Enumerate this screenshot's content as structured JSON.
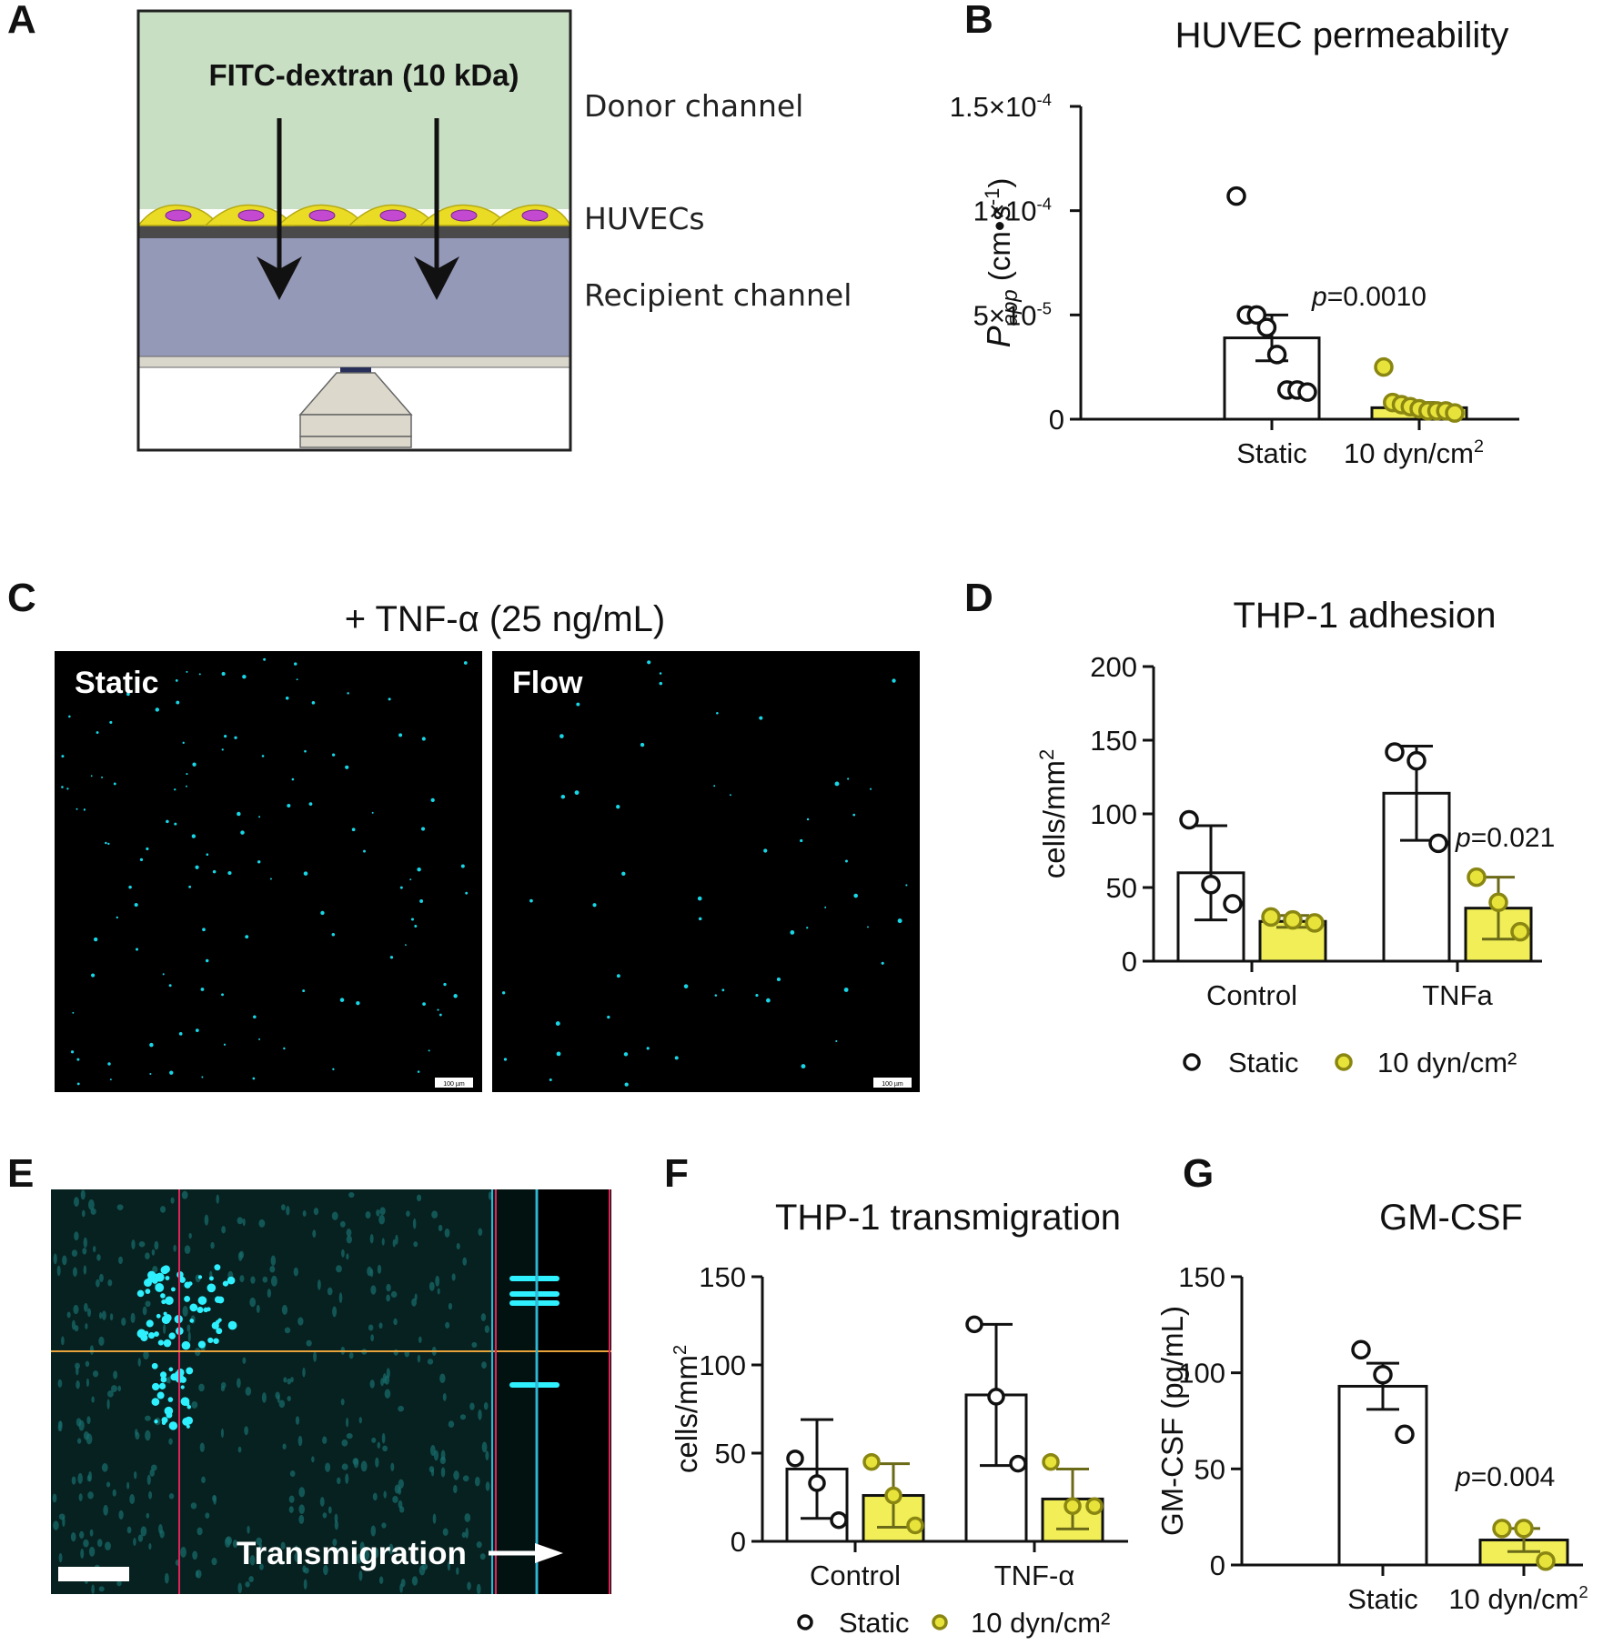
{
  "panels": {
    "A": {
      "letter": "A",
      "compound_label": "FITC-dextran (10 kDa)",
      "labels": [
        "Donor channel",
        "HUVECs",
        "Recipient channel"
      ]
    },
    "B": {
      "letter": "B"
    },
    "C": {
      "letter": "C",
      "title": "+ TNF-α (25 ng/mL)",
      "images": [
        {
          "label": "Static",
          "scale_text": "100 µm"
        },
        {
          "label": "Flow",
          "scale_text": "100 µm"
        }
      ]
    },
    "D": {
      "letter": "D",
      "legend": [
        "Static",
        "10 dyn/cm²"
      ]
    },
    "E": {
      "letter": "E",
      "arrow_label": "Transmigration"
    },
    "F": {
      "letter": "F",
      "legend": [
        "Static",
        "10 dyn/cm²"
      ]
    },
    "G": {
      "letter": "G"
    }
  },
  "colors": {
    "static_fill": "#ffffff",
    "flow_fill": "#f1ee57",
    "flow_point": "#e7e33a",
    "donor_channel": "#c8dfc3",
    "recipient_channel": "#9599b8",
    "cells": "#eadc25",
    "nuclei": "#c34ad0",
    "fluorescence": "#18d6e6",
    "crosshair_red": "#e0235a",
    "crosshair_orange": "#e7a23b"
  },
  "chart_data": [
    {
      "panel": "B",
      "type": "bar",
      "title": "HUVEC permeability",
      "ylabel": "Papp (cm•s-1)",
      "ylim": [
        0,
        0.00015
      ],
      "yticks": [
        0,
        5e-05,
        0.0001,
        0.00015
      ],
      "ytick_labels": [
        "0",
        "5×10-5",
        "1×10-4",
        "1.5×10-4"
      ],
      "categories": [
        "Static",
        "10 dyn/cm2"
      ],
      "values": [
        3.9e-05,
        5.5e-06
      ],
      "errors": [
        1.1e-05,
        2.5e-06
      ],
      "points": [
        [
          0.000107,
          5e-05,
          5e-05,
          4.4e-05,
          3.1e-05,
          1.4e-05,
          1.4e-05,
          1.3e-05
        ],
        [
          2.5e-05,
          8e-06,
          7e-06,
          6e-06,
          5e-06,
          4e-06,
          4e-06,
          4e-06,
          3e-06
        ]
      ],
      "annotation": "p=0.0010"
    },
    {
      "panel": "D",
      "type": "bar",
      "title": "THP-1 adhesion",
      "ylabel": "cells/mm2",
      "ylim": [
        0,
        200
      ],
      "yticks": [
        0,
        50,
        100,
        150,
        200
      ],
      "categories": [
        "Control",
        "TNFa"
      ],
      "series": [
        {
          "name": "Static",
          "values": [
            60,
            114
          ],
          "errors": [
            32,
            32
          ],
          "points": [
            [
              96,
              52,
              39
            ],
            [
              142,
              136,
              80
            ]
          ]
        },
        {
          "name": "10 dyn/cm2",
          "values": [
            27,
            36
          ],
          "errors": [
            4,
            21
          ],
          "points": [
            [
              30,
              28,
              26
            ],
            [
              57,
              40,
              20
            ]
          ]
        }
      ],
      "annotation": "p=0.021"
    },
    {
      "panel": "F",
      "type": "bar",
      "title": "THP-1 transmigration",
      "ylabel": "cells/mm2",
      "ylim": [
        0,
        150
      ],
      "yticks": [
        0,
        50,
        100,
        150
      ],
      "categories": [
        "Control",
        "TNF-α"
      ],
      "series": [
        {
          "name": "Static",
          "values": [
            41,
            83
          ],
          "errors": [
            28,
            40
          ],
          "points": [
            [
              47,
              33,
              12
            ],
            [
              123,
              82,
              44
            ]
          ]
        },
        {
          "name": "10 dyn/cm2",
          "values": [
            26,
            24
          ],
          "errors": [
            18,
            17
          ],
          "points": [
            [
              45,
              26,
              9
            ],
            [
              45,
              20,
              20
            ]
          ]
        }
      ]
    },
    {
      "panel": "G",
      "type": "bar",
      "title": "GM-CSF",
      "ylabel": "GM-CSF (pg/mL)",
      "ylim": [
        0,
        150
      ],
      "yticks": [
        0,
        50,
        100,
        150
      ],
      "categories": [
        "Static",
        "10 dyn/cm2"
      ],
      "values": [
        93,
        13
      ],
      "errors": [
        12,
        6
      ],
      "points": [
        [
          112,
          99,
          68
        ],
        [
          19,
          19,
          2
        ]
      ],
      "annotation": "p=0.004"
    }
  ]
}
